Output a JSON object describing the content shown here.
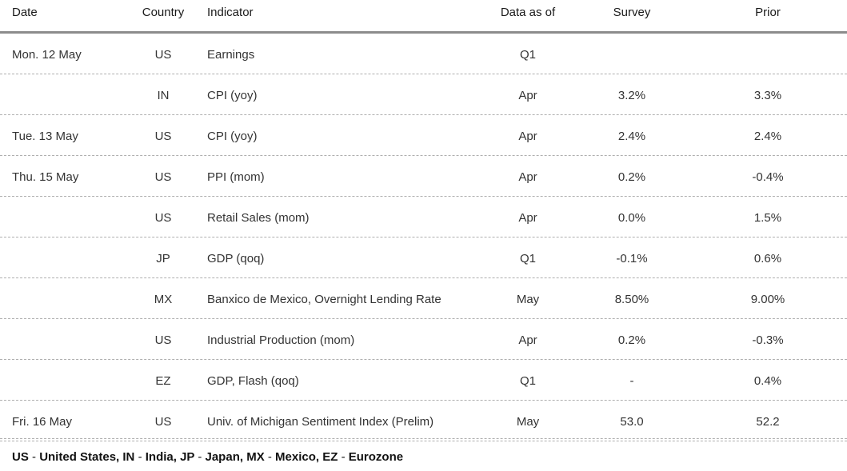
{
  "headers": {
    "date": "Date",
    "country": "Country",
    "indicator": "Indicator",
    "as_of": "Data as of",
    "survey": "Survey",
    "prior": "Prior"
  },
  "rows": [
    {
      "date": "Mon. 12 May",
      "country": "US",
      "indicator": "Earnings",
      "as_of": "Q1",
      "survey": "",
      "prior": ""
    },
    {
      "date": "",
      "country": "IN",
      "indicator": "CPI (yoy)",
      "as_of": "Apr",
      "survey": "3.2%",
      "prior": "3.3%"
    },
    {
      "date": "Tue. 13 May",
      "country": "US",
      "indicator": "CPI (yoy)",
      "as_of": "Apr",
      "survey": "2.4%",
      "prior": "2.4%"
    },
    {
      "date": "Thu. 15 May",
      "country": "US",
      "indicator": "PPI (mom)",
      "as_of": "Apr",
      "survey": "0.2%",
      "prior": "-0.4%"
    },
    {
      "date": "",
      "country": "US",
      "indicator": "Retail Sales (mom)",
      "as_of": "Apr",
      "survey": "0.0%",
      "prior": "1.5%"
    },
    {
      "date": "",
      "country": "JP",
      "indicator": "GDP (qoq)",
      "as_of": "Q1",
      "survey": "-0.1%",
      "prior": "0.6%"
    },
    {
      "date": "",
      "country": "MX",
      "indicator": "Banxico de Mexico, Overnight Lending Rate",
      "as_of": "May",
      "survey": "8.50%",
      "prior": "9.00%"
    },
    {
      "date": "",
      "country": "US",
      "indicator": "Industrial Production (mom)",
      "as_of": "Apr",
      "survey": "0.2%",
      "prior": "-0.3%"
    },
    {
      "date": "",
      "country": "EZ",
      "indicator": "GDP, Flash (qoq)",
      "as_of": "Q1",
      "survey": "-",
      "prior": "0.4%"
    },
    {
      "date": "Fri. 16 May",
      "country": "US",
      "indicator": "Univ. of Michigan Sentiment Index (Prelim)",
      "as_of": "May",
      "survey": "53.0",
      "prior": "52.2"
    }
  ],
  "footnote": {
    "us_code": "US",
    "us_name": "United States,",
    "in_code": "IN",
    "in_name": "India,",
    "jp_code": "JP",
    "jp_name": "Japan,",
    "mx_code": "MX",
    "mx_name": "Mexico,",
    "ez_code": "EZ",
    "ez_name": "Eurozone",
    "separator": "-"
  }
}
